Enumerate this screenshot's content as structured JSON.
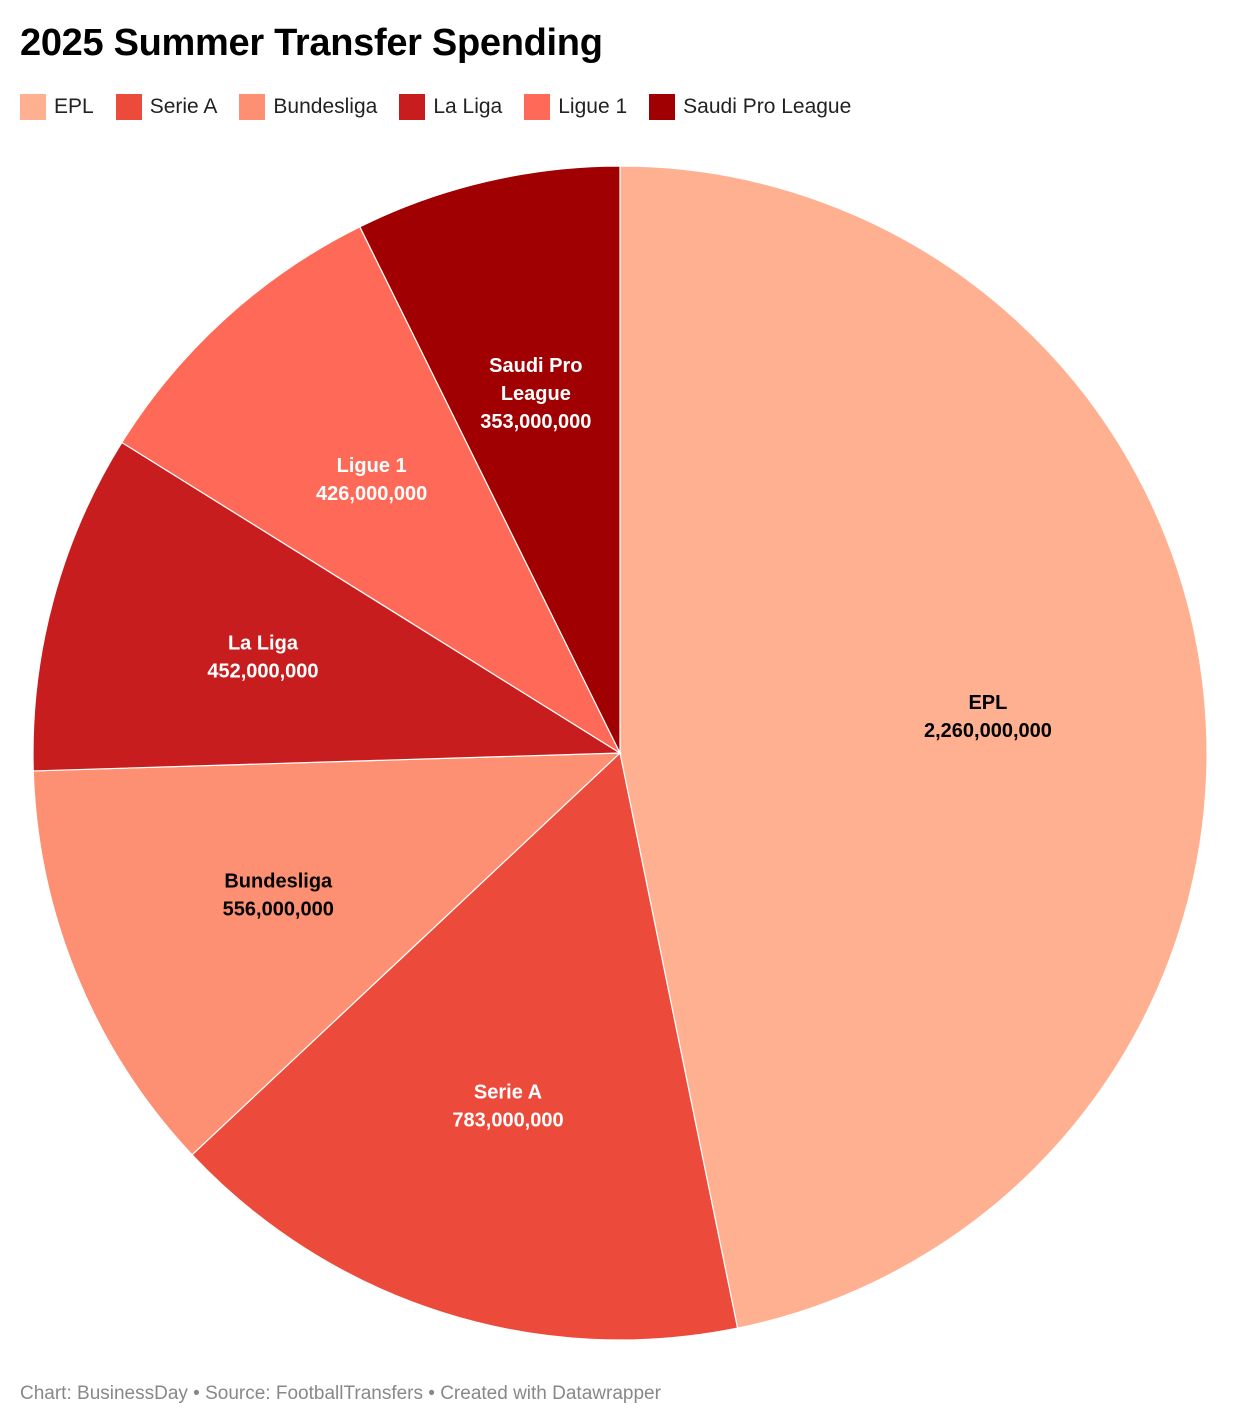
{
  "chart_data": {
    "type": "pie",
    "title": "2025 Summer Transfer Spending",
    "categories": [
      "EPL",
      "Serie A",
      "Bundesliga",
      "La Liga",
      "Ligue 1",
      "Saudi Pro League"
    ],
    "values": [
      2260000000,
      783000000,
      556000000,
      452000000,
      426000000,
      353000000
    ],
    "value_labels": [
      "2,260,000,000",
      "783,000,000",
      "556,000,000",
      "452,000,000",
      "426,000,000",
      "353,000,000"
    ],
    "label_lines": [
      [
        "EPL"
      ],
      [
        "Serie A"
      ],
      [
        "Bundesliga"
      ],
      [
        "La Liga"
      ],
      [
        "Ligue 1"
      ],
      [
        "Saudi Pro",
        "League"
      ]
    ],
    "colors": [
      "#feb090",
      "#ec4a3b",
      "#fd8f72",
      "#c81d1e",
      "#fe6a57",
      "#a00002"
    ],
    "label_colors": [
      "#000000",
      "#ffffff",
      "#000000",
      "#ffffff",
      "#ffffff",
      "#ffffff"
    ],
    "legend_position": "top-left"
  },
  "footer": "Chart: BusinessDay • Source: FootballTransfers • Created with Datawrapper"
}
